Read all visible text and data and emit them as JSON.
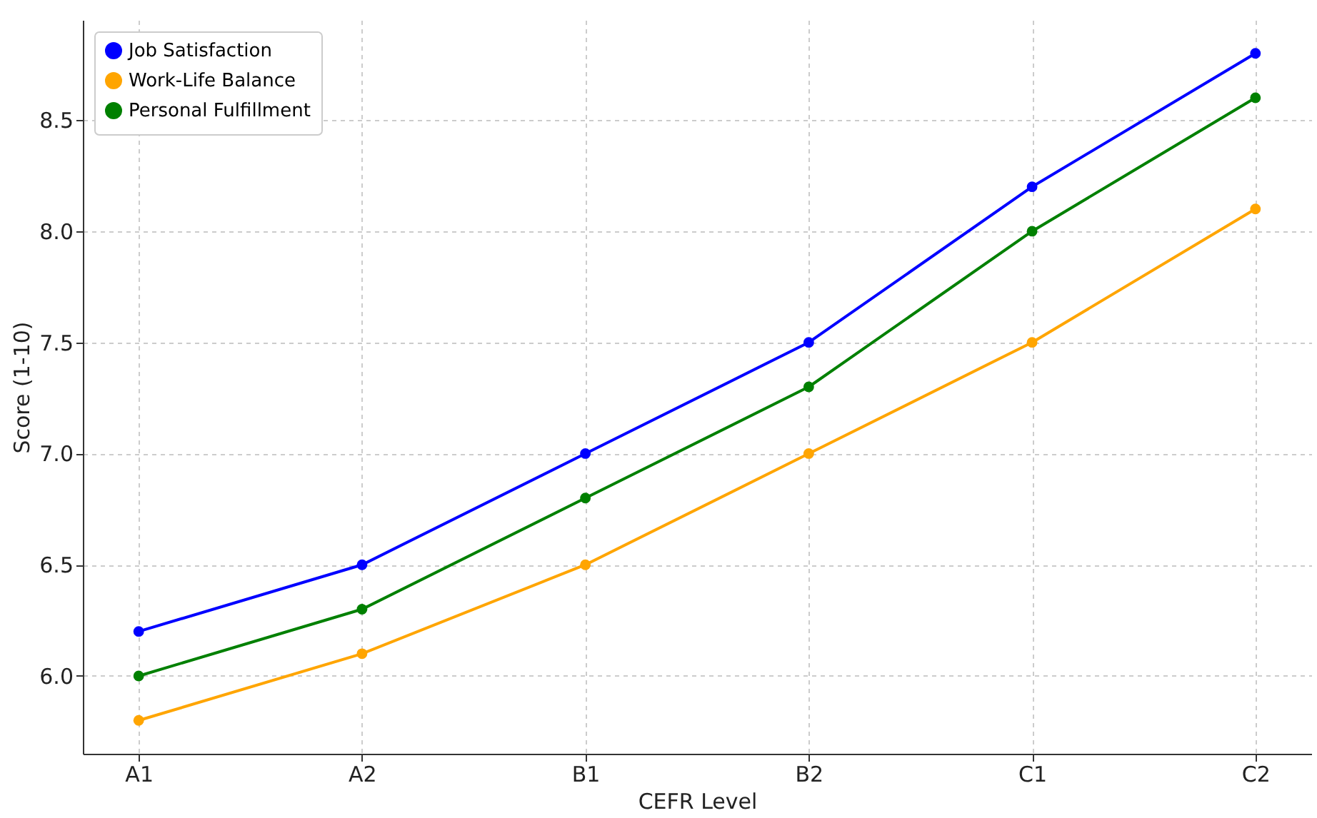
{
  "chart_data": {
    "type": "line",
    "xlabel": "CEFR Level",
    "ylabel": "Score (1-10)",
    "categories": [
      "A1",
      "A2",
      "B1",
      "B2",
      "C1",
      "C2"
    ],
    "series": [
      {
        "name": "Job Satisfaction",
        "color": "#0000ff",
        "values": [
          6.2,
          6.5,
          7.0,
          7.5,
          8.2,
          8.8
        ]
      },
      {
        "name": "Work-Life Balance",
        "color": "#ffa500",
        "values": [
          5.8,
          6.1,
          6.5,
          7.0,
          7.5,
          8.1
        ]
      },
      {
        "name": "Personal Fulfillment",
        "color": "#008000",
        "values": [
          6.0,
          6.3,
          6.8,
          7.3,
          8.0,
          8.6
        ]
      }
    ],
    "ylim": [
      5.65,
      8.95
    ],
    "yticks": [
      {
        "value": 6,
        "label": "6.0"
      },
      {
        "value": 6.5,
        "label": "6.5"
      },
      {
        "value": 7,
        "label": "7.0"
      },
      {
        "value": 7.5,
        "label": "7.5"
      },
      {
        "value": 8,
        "label": "8.0"
      },
      {
        "value": 8.5,
        "label": "8.5"
      }
    ],
    "grid": true,
    "legend": "top left",
    "marker": "circle",
    "line_style": "solid"
  }
}
